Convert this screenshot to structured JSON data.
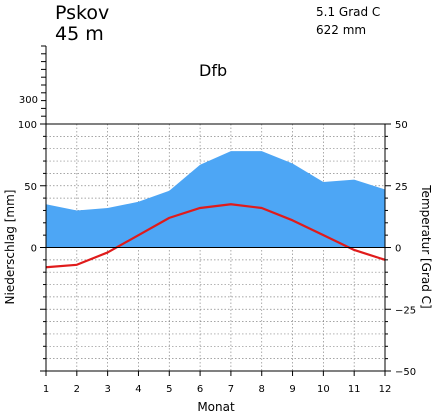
{
  "station": {
    "name": "Pskov",
    "elevation": "45 m",
    "annual_temp": "5.1 Grad C",
    "annual_precip": "622 mm",
    "climate_class": "Dfb"
  },
  "colors": {
    "precip_fill": "#4da6f5",
    "temp_line": "#e01b1b",
    "grid": "#888888"
  },
  "chart_data": {
    "type": "area",
    "title": "",
    "xlabel": "Monat",
    "ylabel_left": "Niederschlag [mm]",
    "ylabel_right": "Temperatur [Grad C]",
    "x": [
      1,
      2,
      3,
      4,
      5,
      6,
      7,
      8,
      9,
      10,
      11,
      12
    ],
    "x_tick_labels": [
      "1",
      "2",
      "3",
      "4",
      "5",
      "6",
      "7",
      "8",
      "9",
      "10",
      "11",
      "12"
    ],
    "ylim_left": [
      -100,
      100
    ],
    "ylim_right": [
      -50,
      50
    ],
    "left_tick_labels": [
      "100",
      "50",
      "0"
    ],
    "left_tick_values": [
      100,
      50,
      0
    ],
    "left_upper_tick_label": "300",
    "right_tick_labels": [
      "50",
      "25",
      "0",
      "−25",
      "−50"
    ],
    "right_tick_values": [
      50,
      25,
      0,
      -25,
      -50
    ],
    "grid": true,
    "series": [
      {
        "kind": "precipitation",
        "axis": "left",
        "values": [
          35,
          30,
          32,
          37,
          46,
          67,
          78,
          78,
          68,
          53,
          55,
          47
        ]
      },
      {
        "kind": "temperature",
        "axis": "right",
        "values": [
          -8,
          -7,
          -2,
          5,
          12,
          16,
          17.5,
          16,
          11,
          5,
          -1,
          -5
        ]
      }
    ]
  }
}
